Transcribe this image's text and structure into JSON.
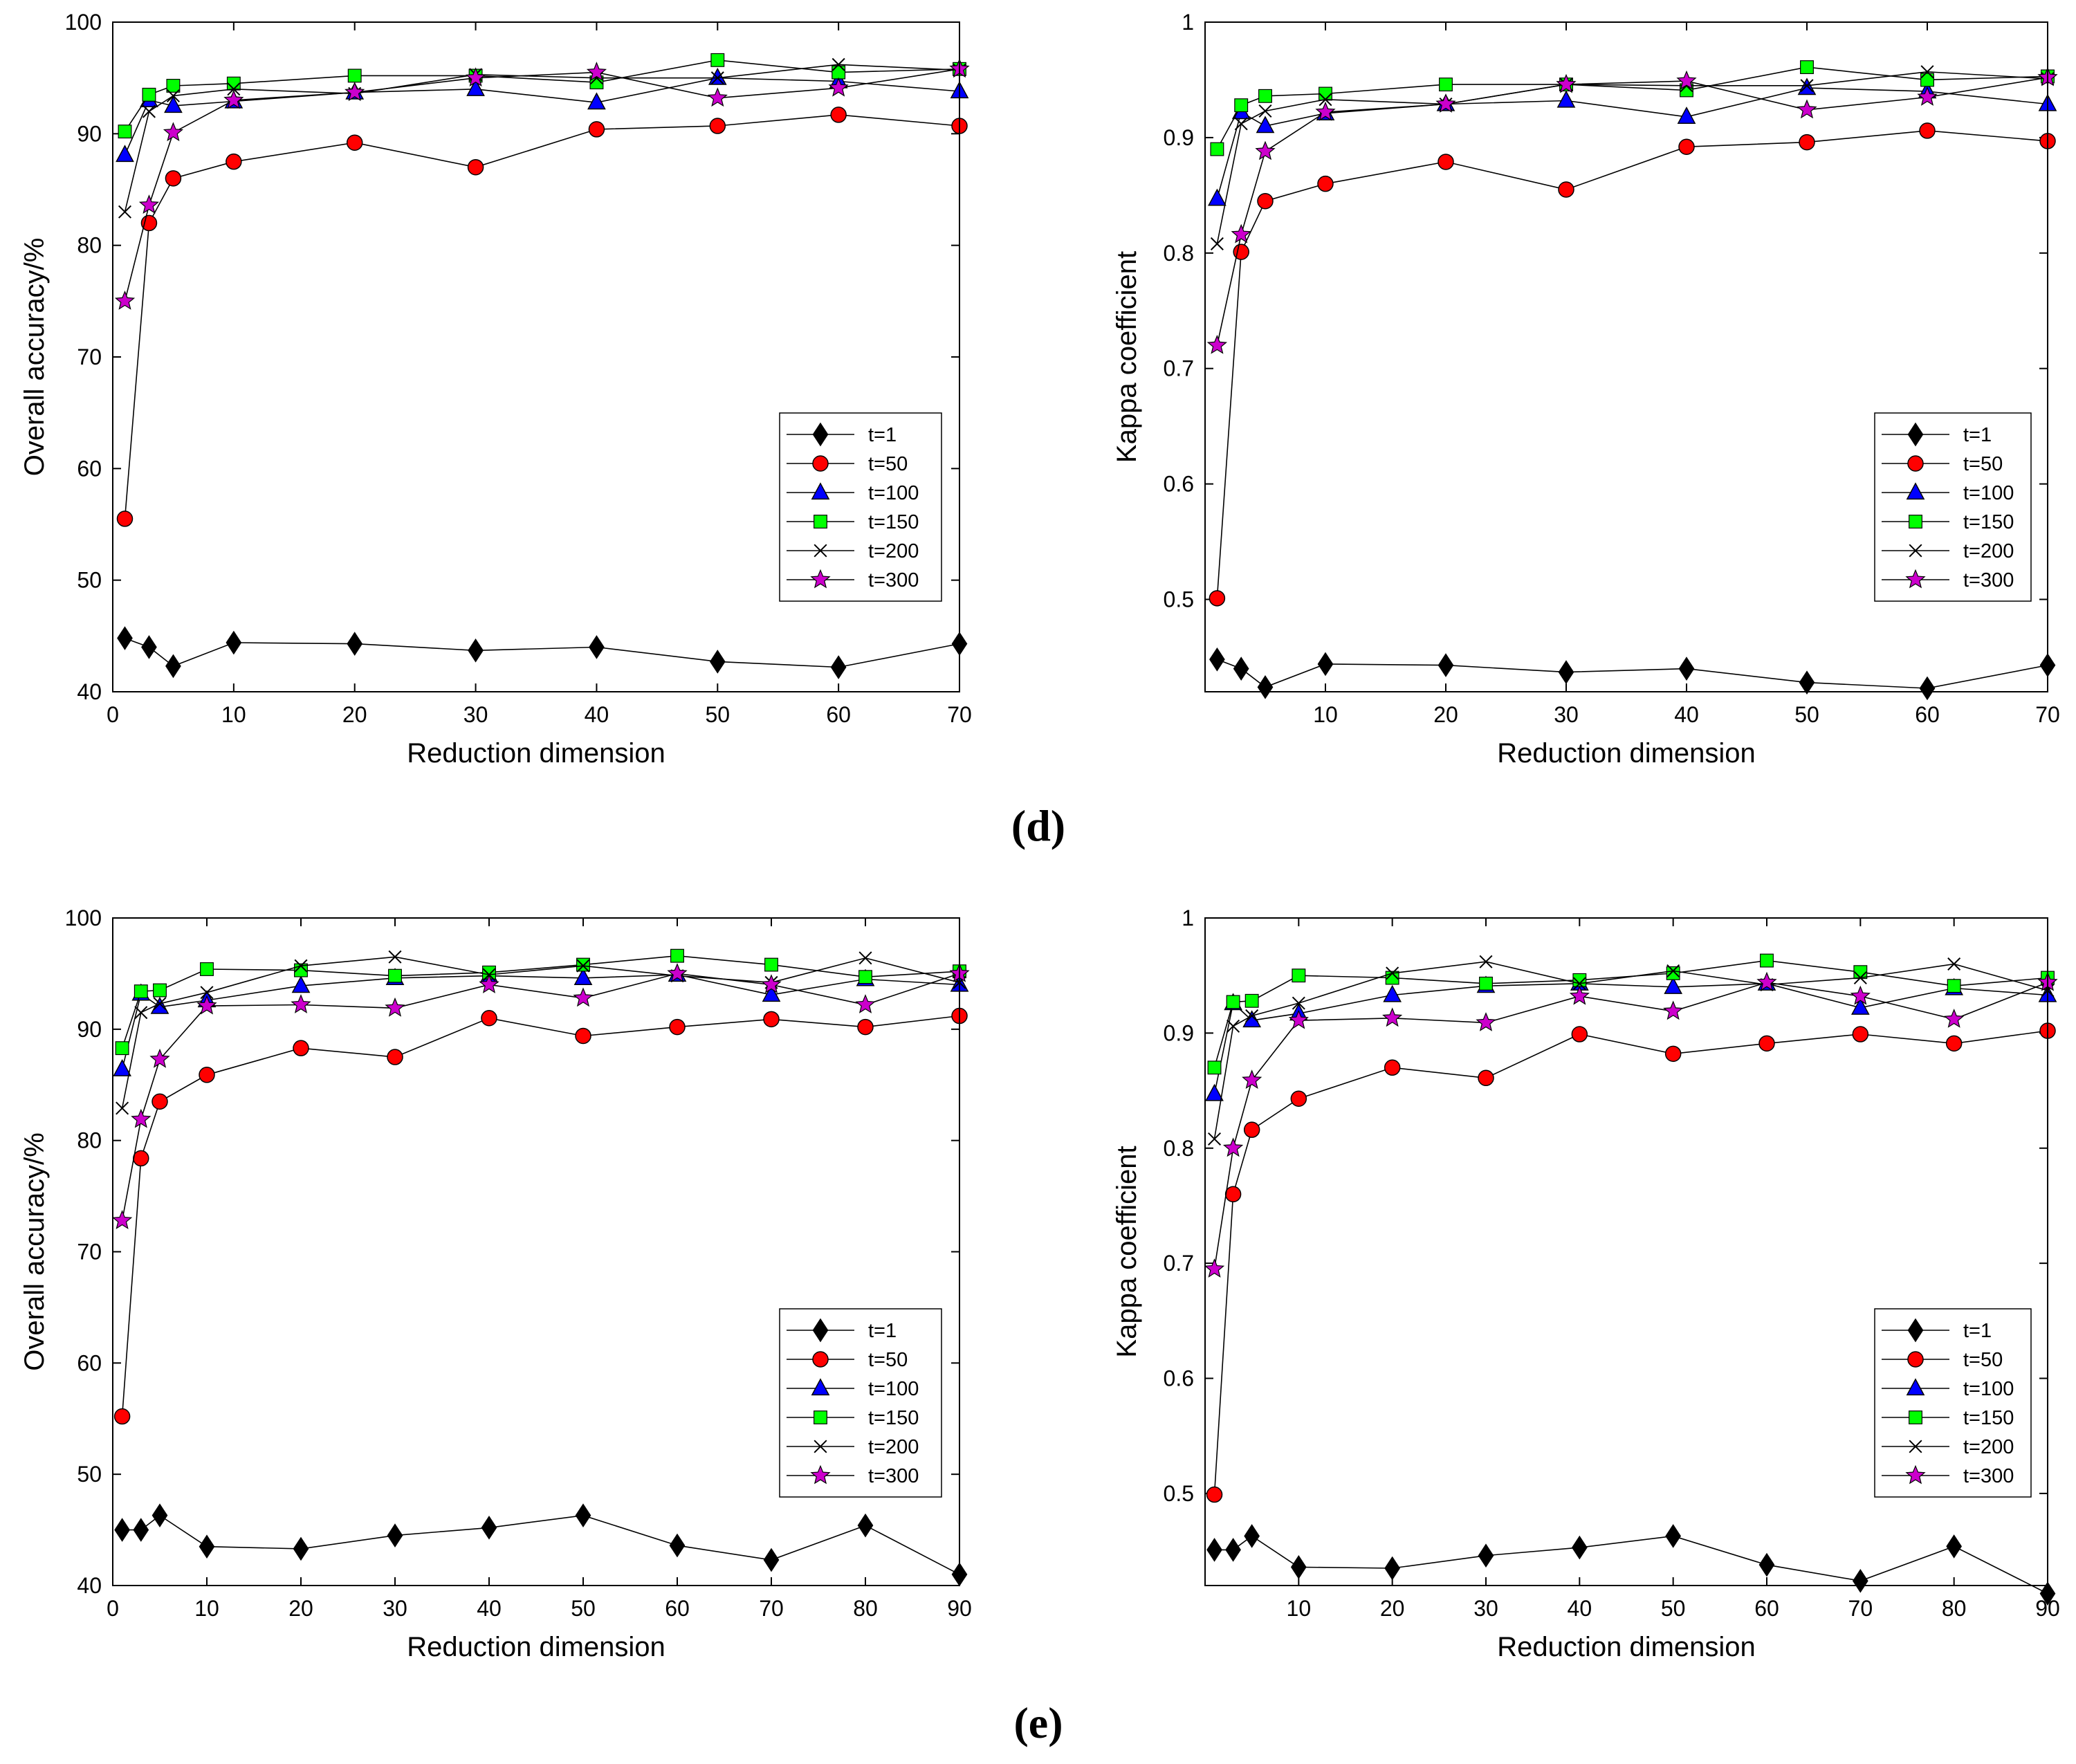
{
  "panels": [
    {
      "label": "(d)",
      "charts": [
        0,
        1
      ]
    },
    {
      "label": "(e)",
      "charts": [
        2,
        3
      ]
    }
  ],
  "series_styles": [
    {
      "name": "t=1",
      "marker": "diamond",
      "color": "#000000"
    },
    {
      "name": "t=50",
      "marker": "circle",
      "color": "#ff0000"
    },
    {
      "name": "t=100",
      "marker": "triangle",
      "color": "#0000ff"
    },
    {
      "name": "t=150",
      "marker": "square",
      "color": "#00ff00"
    },
    {
      "name": "t=200",
      "marker": "cross",
      "color": "#000000"
    },
    {
      "name": "t=300",
      "marker": "star",
      "color": "#cc00cc"
    }
  ],
  "chart_data": [
    {
      "type": "line",
      "title": "",
      "xlabel": "Reduction dimension",
      "ylabel": "Overall accuracy/%",
      "xlim": [
        0,
        70
      ],
      "ylim": [
        40,
        100
      ],
      "xticks": [
        0,
        10,
        20,
        30,
        40,
        50,
        60,
        70
      ],
      "yticks": [
        40,
        50,
        60,
        70,
        80,
        90,
        100
      ],
      "grid": false,
      "legend_position": "bottom-right",
      "x": [
        1,
        3,
        5,
        10,
        20,
        30,
        40,
        50,
        60,
        70
      ],
      "series": [
        {
          "name": "t=1",
          "values": [
            44.8,
            44.0,
            42.3,
            44.4,
            44.3,
            43.7,
            44.0,
            42.7,
            42.2,
            44.3
          ]
        },
        {
          "name": "t=50",
          "values": [
            55.5,
            82.0,
            86.0,
            87.5,
            89.2,
            87.0,
            90.4,
            90.7,
            91.7,
            90.7
          ]
        },
        {
          "name": "t=100",
          "values": [
            88.1,
            93.0,
            92.5,
            92.9,
            93.7,
            94.0,
            92.8,
            95.0,
            94.7,
            93.8
          ]
        },
        {
          "name": "t=150",
          "values": [
            90.2,
            93.5,
            94.3,
            94.5,
            95.2,
            95.2,
            94.6,
            96.6,
            95.5,
            95.8
          ]
        },
        {
          "name": "t=200",
          "values": [
            83.0,
            92.0,
            93.4,
            94.0,
            93.6,
            95.3,
            95.0,
            95.0,
            96.2,
            95.7
          ]
        },
        {
          "name": "t=300",
          "values": [
            75.0,
            83.6,
            90.1,
            93.0,
            93.7,
            95.0,
            95.5,
            93.2,
            94.1,
            95.8
          ]
        }
      ]
    },
    {
      "type": "line",
      "title": "",
      "xlabel": "Reduction dimension",
      "ylabel": "Kappa coefficient",
      "xlim": [
        0,
        70
      ],
      "ylim": [
        0.42,
        1.0
      ],
      "xticks": [
        10,
        20,
        30,
        40,
        50,
        60,
        70
      ],
      "yticks": [
        0.5,
        0.6,
        0.7,
        0.8,
        0.9,
        1.0
      ],
      "ytick_labels": [
        "0.5",
        "0.6",
        "0.7",
        "0.8",
        "0.9",
        "1"
      ],
      "grid": false,
      "legend_position": "bottom-right",
      "x": [
        1,
        3,
        5,
        10,
        20,
        30,
        40,
        50,
        60,
        70
      ],
      "series": [
        {
          "name": "t=1",
          "values": [
            0.448,
            0.44,
            0.424,
            0.444,
            0.443,
            0.437,
            0.44,
            0.428,
            0.423,
            0.443
          ]
        },
        {
          "name": "t=50",
          "values": [
            0.501,
            0.801,
            0.845,
            0.86,
            0.879,
            0.855,
            0.892,
            0.896,
            0.906,
            0.897
          ]
        },
        {
          "name": "t=100",
          "values": [
            0.847,
            0.922,
            0.91,
            0.921,
            0.929,
            0.932,
            0.918,
            0.943,
            0.94,
            0.929
          ]
        },
        {
          "name": "t=150",
          "values": [
            0.89,
            0.928,
            0.936,
            0.938,
            0.946,
            0.946,
            0.941,
            0.961,
            0.95,
            0.953
          ]
        },
        {
          "name": "t=200",
          "values": [
            0.808,
            0.912,
            0.923,
            0.933,
            0.929,
            0.946,
            0.945,
            0.945,
            0.957,
            0.951
          ]
        },
        {
          "name": "t=300",
          "values": [
            0.72,
            0.816,
            0.888,
            0.922,
            0.929,
            0.946,
            0.949,
            0.924,
            0.935,
            0.952
          ]
        }
      ]
    },
    {
      "type": "line",
      "title": "",
      "xlabel": "Reduction dimension",
      "ylabel": "Overall accuracy/%",
      "xlim": [
        0,
        90
      ],
      "ylim": [
        40,
        100
      ],
      "xticks": [
        0,
        10,
        20,
        30,
        40,
        50,
        60,
        70,
        80,
        90
      ],
      "yticks": [
        40,
        50,
        60,
        70,
        80,
        90,
        100
      ],
      "grid": false,
      "legend_position": "bottom-right",
      "x": [
        1,
        3,
        5,
        10,
        20,
        30,
        40,
        50,
        60,
        70,
        80,
        90
      ],
      "series": [
        {
          "name": "t=1",
          "values": [
            45.0,
            45.0,
            46.3,
            43.5,
            43.3,
            44.5,
            45.2,
            46.3,
            43.6,
            42.3,
            45.4,
            41.0
          ]
        },
        {
          "name": "t=50",
          "values": [
            55.2,
            78.4,
            83.5,
            85.9,
            88.3,
            87.5,
            91.0,
            89.4,
            90.2,
            90.9,
            90.2,
            91.2
          ]
        },
        {
          "name": "t=100",
          "values": [
            86.4,
            93.2,
            92.0,
            92.6,
            93.9,
            94.6,
            94.8,
            94.6,
            94.9,
            93.1,
            94.5,
            94.0
          ]
        },
        {
          "name": "t=150",
          "values": [
            88.3,
            93.4,
            93.5,
            95.4,
            95.3,
            94.8,
            95.1,
            95.8,
            96.6,
            95.8,
            94.7,
            95.2
          ]
        },
        {
          "name": "t=200",
          "values": [
            82.9,
            91.5,
            92.3,
            93.3,
            95.7,
            96.5,
            94.9,
            95.7,
            94.8,
            94.2,
            96.4,
            94.2
          ]
        },
        {
          "name": "t=300",
          "values": [
            72.8,
            81.9,
            87.3,
            92.1,
            92.2,
            91.9,
            94.0,
            92.8,
            95.0,
            94.0,
            92.2,
            95.0
          ]
        }
      ]
    },
    {
      "type": "line",
      "title": "",
      "xlabel": "Reduction dimension",
      "ylabel": "Kappa coefficient",
      "xlim": [
        0,
        90
      ],
      "ylim": [
        0.42,
        1.0
      ],
      "xticks": [
        10,
        20,
        30,
        40,
        50,
        60,
        70,
        80,
        90
      ],
      "yticks": [
        0.5,
        0.6,
        0.7,
        0.8,
        0.9,
        1.0
      ],
      "ytick_labels": [
        "0.5",
        "0.6",
        "0.7",
        "0.8",
        "0.9",
        "1"
      ],
      "grid": false,
      "legend_position": "bottom-right",
      "x": [
        1,
        3,
        5,
        10,
        20,
        30,
        40,
        50,
        60,
        70,
        80,
        90
      ],
      "series": [
        {
          "name": "t=1",
          "values": [
            0.451,
            0.451,
            0.463,
            0.436,
            0.435,
            0.446,
            0.453,
            0.463,
            0.438,
            0.424,
            0.454,
            0.413
          ]
        },
        {
          "name": "t=50",
          "values": [
            0.499,
            0.76,
            0.816,
            0.843,
            0.87,
            0.861,
            0.899,
            0.882,
            0.891,
            0.899,
            0.891,
            0.902
          ]
        },
        {
          "name": "t=100",
          "values": [
            0.847,
            0.926,
            0.911,
            0.917,
            0.933,
            0.941,
            0.943,
            0.94,
            0.943,
            0.922,
            0.939,
            0.933
          ]
        },
        {
          "name": "t=150",
          "values": [
            0.87,
            0.927,
            0.928,
            0.95,
            0.948,
            0.943,
            0.946,
            0.952,
            0.963,
            0.953,
            0.941,
            0.948
          ]
        },
        {
          "name": "t=200",
          "values": [
            0.808,
            0.906,
            0.915,
            0.926,
            0.952,
            0.962,
            0.943,
            0.954,
            0.942,
            0.948,
            0.96,
            0.937
          ]
        },
        {
          "name": "t=300",
          "values": [
            0.695,
            0.8,
            0.859,
            0.911,
            0.913,
            0.909,
            0.932,
            0.919,
            0.944,
            0.932,
            0.912,
            0.944
          ]
        }
      ]
    }
  ]
}
